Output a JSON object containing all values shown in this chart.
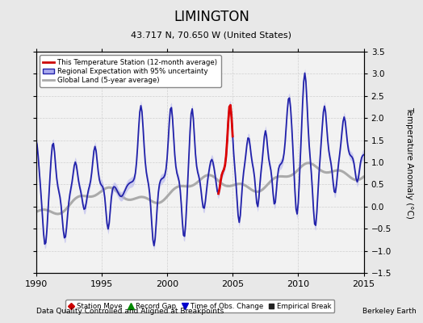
{
  "title": "LIMINGTON",
  "subtitle": "43.717 N, 70.650 W (United States)",
  "xlabel_bottom": "Data Quality Controlled and Aligned at Breakpoints",
  "xlabel_right": "Berkeley Earth",
  "ylabel": "Temperature Anomaly (°C)",
  "xlim": [
    1990,
    2015
  ],
  "ylim": [
    -1.5,
    3.5
  ],
  "yticks": [
    -1.5,
    -1,
    -0.5,
    0,
    0.5,
    1,
    1.5,
    2,
    2.5,
    3,
    3.5
  ],
  "xticks": [
    1990,
    1995,
    2000,
    2005,
    2010,
    2015
  ],
  "bg_color": "#e8e8e8",
  "plot_bg_color": "#f2f2f2",
  "grid_color": "#cccccc",
  "regional_color": "#2222aa",
  "regional_band_color": "#aaaaee",
  "station_color": "#dd0000",
  "global_color": "#aaaaaa",
  "legend_line_color": "#cc0000",
  "legend_band_color": "#aaaaee",
  "legend_band_edge": "#2222aa",
  "legend_global_color": "#aaaaaa"
}
